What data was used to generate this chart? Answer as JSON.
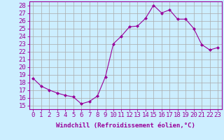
{
  "x": [
    0,
    1,
    2,
    3,
    4,
    5,
    6,
    7,
    8,
    9,
    10,
    11,
    12,
    13,
    14,
    15,
    16,
    17,
    18,
    19,
    20,
    21,
    22,
    23
  ],
  "y": [
    18.5,
    17.5,
    17.0,
    16.6,
    16.3,
    16.1,
    15.2,
    15.5,
    16.2,
    18.7,
    23.0,
    24.0,
    25.2,
    25.3,
    26.3,
    28.0,
    27.0,
    27.4,
    26.2,
    26.2,
    25.0,
    22.9,
    22.2,
    22.5
  ],
  "line_color": "#990099",
  "marker": "D",
  "marker_size": 2,
  "bg_color": "#cceeff",
  "grid_color": "#aaaaaa",
  "xlabel": "Windchill (Refroidissement éolien,°C)",
  "ylabel_ticks": [
    15,
    16,
    17,
    18,
    19,
    20,
    21,
    22,
    23,
    24,
    25,
    26,
    27,
    28
  ],
  "xlim": [
    -0.5,
    23.5
  ],
  "ylim": [
    14.5,
    28.5
  ],
  "xticks": [
    0,
    1,
    2,
    3,
    4,
    5,
    6,
    7,
    8,
    9,
    10,
    11,
    12,
    13,
    14,
    15,
    16,
    17,
    18,
    19,
    20,
    21,
    22,
    23
  ],
  "xlabel_fontsize": 6.5,
  "tick_fontsize": 6.5,
  "accent_color": "#990099"
}
